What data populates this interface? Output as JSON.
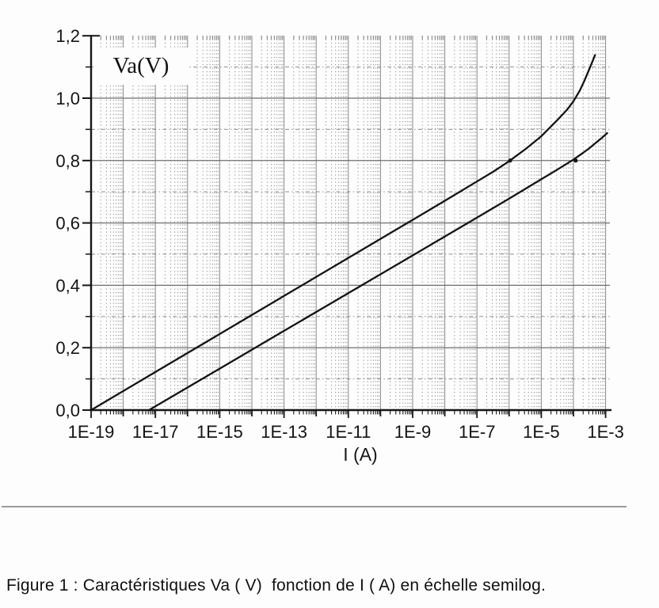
{
  "figure": {
    "y_axis_inner_label": "Va(V)",
    "x_axis_label": "I (A)",
    "caption": "Figure 1 : Caractéristiques Va ( V)  fonction de I ( A) en échelle semilog."
  },
  "chart_data": {
    "type": "line",
    "title": "",
    "x_scale": "log10",
    "xlabel": "I (A)",
    "ylabel": "Va(V)",
    "xlim_log10": [
      -19,
      -3
    ],
    "ylim": [
      0,
      1.2
    ],
    "grid": {
      "vertical": "solid line each decade, dotted log minors",
      "horizontal": "solid each 0.2 V, dash-dot each 0.1 V"
    },
    "legend_position": "none",
    "x_ticks": [
      {
        "log10": -19,
        "label": "1E-19"
      },
      {
        "log10": -17,
        "label": "1E-17"
      },
      {
        "log10": -15,
        "label": "1E-15"
      },
      {
        "log10": -13,
        "label": "1E-13"
      },
      {
        "log10": -11,
        "label": "1E-11"
      },
      {
        "log10": -9,
        "label": "1E-9"
      },
      {
        "log10": -7,
        "label": "1E-7"
      },
      {
        "log10": -5,
        "label": "1E-5"
      },
      {
        "log10": -3,
        "label": "1E-3"
      }
    ],
    "log_minor_divisions": [
      2,
      3,
      4,
      5,
      6,
      7,
      8,
      9
    ],
    "y_ticks": [
      {
        "value": 0.0,
        "label": "0,0"
      },
      {
        "value": 0.2,
        "label": "0,2"
      },
      {
        "value": 0.4,
        "label": "0,4"
      },
      {
        "value": 0.6,
        "label": "0,6"
      },
      {
        "value": 0.8,
        "label": "0,8"
      },
      {
        "value": 1.0,
        "label": "1,0"
      },
      {
        "value": 1.2,
        "label": "1,2"
      }
    ],
    "y_minor_ticks": [
      0.1,
      0.3,
      0.5,
      0.7,
      0.9,
      1.1
    ],
    "series": [
      {
        "name": "upper-curve",
        "points_log10I_V": [
          [
            -19,
            0.0
          ],
          [
            -17,
            0.122
          ],
          [
            -15,
            0.244
          ],
          [
            -13,
            0.366
          ],
          [
            -11,
            0.488
          ],
          [
            -9,
            0.61
          ],
          [
            -8,
            0.671
          ],
          [
            -7,
            0.733
          ],
          [
            -6.5,
            0.764
          ],
          [
            -6,
            0.798
          ],
          [
            -5.5,
            0.836
          ],
          [
            -5,
            0.878
          ],
          [
            -4.5,
            0.93
          ],
          [
            -4.2,
            0.963
          ],
          [
            -4,
            0.99
          ],
          [
            -3.8,
            1.025
          ],
          [
            -3.65,
            1.058
          ],
          [
            -3.5,
            1.095
          ],
          [
            -3.4,
            1.12
          ],
          [
            -3.33,
            1.138
          ]
        ]
      },
      {
        "name": "lower-curve",
        "points_log10I_V": [
          [
            -17.2,
            0.0
          ],
          [
            -15,
            0.133
          ],
          [
            -13,
            0.254
          ],
          [
            -11,
            0.375
          ],
          [
            -9,
            0.496
          ],
          [
            -7,
            0.617
          ],
          [
            -6,
            0.678
          ],
          [
            -5,
            0.74
          ],
          [
            -4.5,
            0.771
          ],
          [
            -4,
            0.803
          ],
          [
            -3.7,
            0.825
          ],
          [
            -3.5,
            0.84
          ],
          [
            -3.3,
            0.857
          ],
          [
            -3.1,
            0.874
          ],
          [
            -2.95,
            0.888
          ]
        ]
      }
    ],
    "markers": [
      {
        "log10I": -5.97,
        "V": 0.8
      },
      {
        "log10I": -3.93,
        "V": 0.8
      }
    ]
  },
  "colors": {
    "background": "#fdfdfd",
    "axis": "#161616",
    "curve": "#141414",
    "text": "#141414",
    "grid_decade": "#898989",
    "grid_major": "#6f6f6f",
    "grid_minor": "#8f8f8f",
    "separator": "#9b9b9b"
  }
}
